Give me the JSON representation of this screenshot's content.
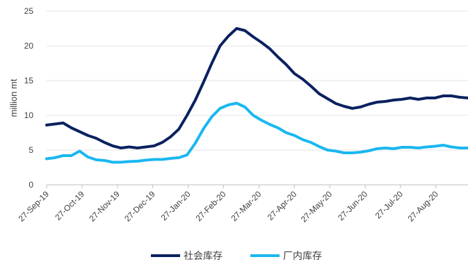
{
  "chart_data": {
    "type": "line",
    "ylabel": "million mt",
    "ylim": [
      0,
      25
    ],
    "yticks": [
      "0",
      "5",
      "10",
      "15",
      "20",
      "25"
    ],
    "xticks": [
      "27-Sep-19",
      "27-Oct-19",
      "27-Nov-19",
      "27-Dec-19",
      "27-Jan-20",
      "27-Feb-20",
      "27-Mar-20",
      "27-Apr-20",
      "27-May-20",
      "27-Jun-20",
      "27-Jul-20",
      "27-Aug-20"
    ],
    "grid": "horizontal",
    "legend_position": "bottom",
    "series": [
      {
        "name": "社会库存",
        "color": "#0B2160",
        "values": [
          8.6,
          8.75,
          8.9,
          8.2,
          7.65,
          7.1,
          6.7,
          6.1,
          5.6,
          5.3,
          5.45,
          5.3,
          5.45,
          5.6,
          6.1,
          6.9,
          8.0,
          10.0,
          12.2,
          14.8,
          17.5,
          20.0,
          21.4,
          22.5,
          22.2,
          21.3,
          20.5,
          19.6,
          18.4,
          17.3,
          16.0,
          15.2,
          14.2,
          13.1,
          12.4,
          11.7,
          11.3,
          11.0,
          11.2,
          11.6,
          11.9,
          12.0,
          12.2,
          12.3,
          12.5,
          12.3,
          12.5,
          12.5,
          12.8,
          12.8,
          12.6,
          12.5
        ]
      },
      {
        "name": "厂内库存",
        "color": "#1AB7F0",
        "values": [
          3.75,
          3.9,
          4.2,
          4.2,
          4.85,
          4.0,
          3.6,
          3.5,
          3.25,
          3.25,
          3.35,
          3.4,
          3.55,
          3.65,
          3.65,
          3.8,
          3.9,
          4.3,
          6.0,
          8.1,
          9.8,
          11.0,
          11.5,
          11.75,
          11.2,
          10.0,
          9.3,
          8.7,
          8.2,
          7.5,
          7.1,
          6.5,
          6.1,
          5.5,
          5.0,
          4.85,
          4.6,
          4.6,
          4.7,
          4.9,
          5.2,
          5.3,
          5.2,
          5.4,
          5.4,
          5.3,
          5.45,
          5.55,
          5.7,
          5.45,
          5.3,
          5.3
        ]
      }
    ]
  }
}
